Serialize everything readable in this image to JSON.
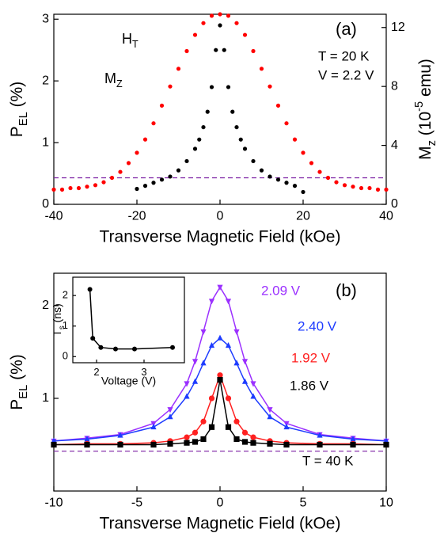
{
  "chart_data": [
    {
      "type": "scatter",
      "label": "(a)",
      "annotations": [
        "T = 20 K",
        "V = 2.2 V"
      ],
      "inset_labels": [
        [
          {
            "text": "H"
          },
          {
            "text": "T",
            "shift": "sub"
          }
        ],
        [
          {
            "text": "M"
          },
          {
            "text": "Z",
            "shift": "sub"
          }
        ]
      ],
      "x_label": "Transverse Magnetic Field (kOe)",
      "y_label": [
        {
          "text": "P"
        },
        {
          "text": "EL",
          "shift": "sub"
        },
        {
          "text": " (%)"
        }
      ],
      "y2_label": [
        {
          "text": "M"
        },
        {
          "text": "z",
          "shift": "sub"
        },
        {
          "text": " (10"
        },
        {
          "text": "-5",
          "shift": "super"
        },
        {
          "text": " emu)"
        }
      ],
      "xlim": [
        -40,
        40
      ],
      "xticks": [
        -40,
        -20,
        0,
        20,
        40
      ],
      "ylim": [
        0,
        3.08
      ],
      "yticks": [
        0,
        1,
        2,
        3
      ],
      "y2lim": [
        0,
        12.9
      ],
      "y2ticks": [
        0,
        4,
        8,
        12
      ],
      "reference_line": 0.43,
      "reference_color": "#7b1fa2",
      "series": [
        {
          "color": "#000000",
          "x": [
            -20,
            -18,
            -16,
            -14,
            -12,
            -10,
            -8,
            -6,
            -5,
            -4,
            -3,
            -2,
            -1,
            0,
            1,
            2,
            3,
            4,
            5,
            6,
            8,
            10,
            12,
            14,
            16,
            18,
            20
          ],
          "values": [
            0.25,
            0.3,
            0.35,
            0.4,
            0.45,
            0.55,
            0.7,
            0.9,
            1.05,
            1.25,
            1.5,
            1.9,
            2.5,
            2.9,
            2.5,
            1.9,
            1.5,
            1.25,
            1.05,
            0.9,
            0.7,
            0.55,
            0.45,
            0.4,
            0.35,
            0.3,
            0.2
          ]
        },
        {
          "color": "#ff0000",
          "axis": "y2",
          "x": [
            -40,
            -38,
            -36,
            -34,
            -32,
            -30,
            -28,
            -26,
            -24,
            -22,
            -20,
            -18,
            -16,
            -14,
            -12,
            -10,
            -8,
            -6,
            -4,
            -2,
            0,
            2,
            4,
            6,
            8,
            10,
            12,
            14,
            16,
            18,
            20,
            22,
            24,
            26,
            28,
            30,
            32,
            34,
            36,
            38,
            40
          ],
          "values": [
            1.0,
            1.0,
            1.1,
            1.1,
            1.2,
            1.3,
            1.5,
            1.8,
            2.2,
            2.8,
            3.5,
            4.4,
            5.5,
            6.7,
            8.0,
            9.2,
            10.4,
            11.5,
            12.3,
            12.8,
            12.9,
            12.8,
            12.3,
            11.5,
            10.4,
            9.2,
            8.0,
            6.7,
            5.5,
            4.4,
            3.5,
            2.8,
            2.2,
            1.8,
            1.5,
            1.3,
            1.2,
            1.1,
            1.1,
            1.0,
            1.0
          ]
        }
      ]
    },
    {
      "type": "line",
      "label": "(b)",
      "annotations": [
        "T = 40 K"
      ],
      "x_label": "Transverse Magnetic Field (kOe)",
      "y_label": [
        {
          "text": "P"
        },
        {
          "text": "EL",
          "shift": "sub"
        },
        {
          "text": " (%)"
        }
      ],
      "xlim": [
        -10,
        10
      ],
      "xticks": [
        -10,
        -5,
        0,
        5,
        10
      ],
      "ylim": [
        0,
        2.35
      ],
      "yticks": [
        1,
        2
      ],
      "reference_line": 0.43,
      "reference_color": "#7b1fa2",
      "x": [
        -10,
        -8,
        -6,
        -4,
        -3,
        -2,
        -1.5,
        -1,
        -0.5,
        0,
        0.5,
        1,
        1.5,
        2,
        3,
        4,
        6,
        8,
        10
      ],
      "series": [
        {
          "name": "2.09 V",
          "color": "#9b30ff",
          "marker": "triangle-down",
          "values": [
            0.54,
            0.57,
            0.61,
            0.73,
            0.88,
            1.16,
            1.4,
            1.72,
            2.05,
            2.2,
            2.05,
            1.72,
            1.4,
            1.16,
            0.88,
            0.73,
            0.61,
            0.57,
            0.54
          ]
        },
        {
          "name": "2.40 V",
          "color": "#1e3cff",
          "marker": "triangle-up",
          "values": [
            0.54,
            0.56,
            0.6,
            0.69,
            0.8,
            1.02,
            1.18,
            1.38,
            1.57,
            1.65,
            1.57,
            1.38,
            1.18,
            1.02,
            0.8,
            0.69,
            0.6,
            0.56,
            0.54
          ]
        },
        {
          "name": "1.92 V",
          "color": "#ff2020",
          "marker": "circle",
          "values": [
            0.5,
            0.51,
            0.51,
            0.52,
            0.54,
            0.58,
            0.63,
            0.75,
            1.0,
            1.25,
            1.0,
            0.75,
            0.63,
            0.58,
            0.54,
            0.52,
            0.51,
            0.51,
            0.5
          ]
        },
        {
          "name": "1.86 V",
          "color": "#000000",
          "marker": "square",
          "values": [
            0.5,
            0.5,
            0.5,
            0.5,
            0.51,
            0.52,
            0.53,
            0.56,
            0.69,
            1.2,
            0.69,
            0.56,
            0.53,
            0.52,
            0.51,
            0.5,
            0.5,
            0.5,
            0.5
          ]
        }
      ]
    },
    {
      "type": "line",
      "x_label": "Voltage (V)",
      "y_label": [
        {
          "text": "T"
        },
        {
          "text": "s",
          "shift": "sub"
        },
        {
          "text": " (ns)"
        }
      ],
      "xlim": [
        1.5,
        3.85
      ],
      "xticks": [
        2,
        3
      ],
      "ylim": [
        -0.2,
        2.6
      ],
      "yticks": [
        0,
        1,
        2
      ],
      "x": [
        1.86,
        1.92,
        2.09,
        2.4,
        2.8,
        3.6
      ],
      "series": [
        {
          "color": "#000000",
          "marker": "circle",
          "values": [
            2.2,
            0.6,
            0.3,
            0.25,
            0.25,
            0.3
          ]
        }
      ]
    }
  ]
}
